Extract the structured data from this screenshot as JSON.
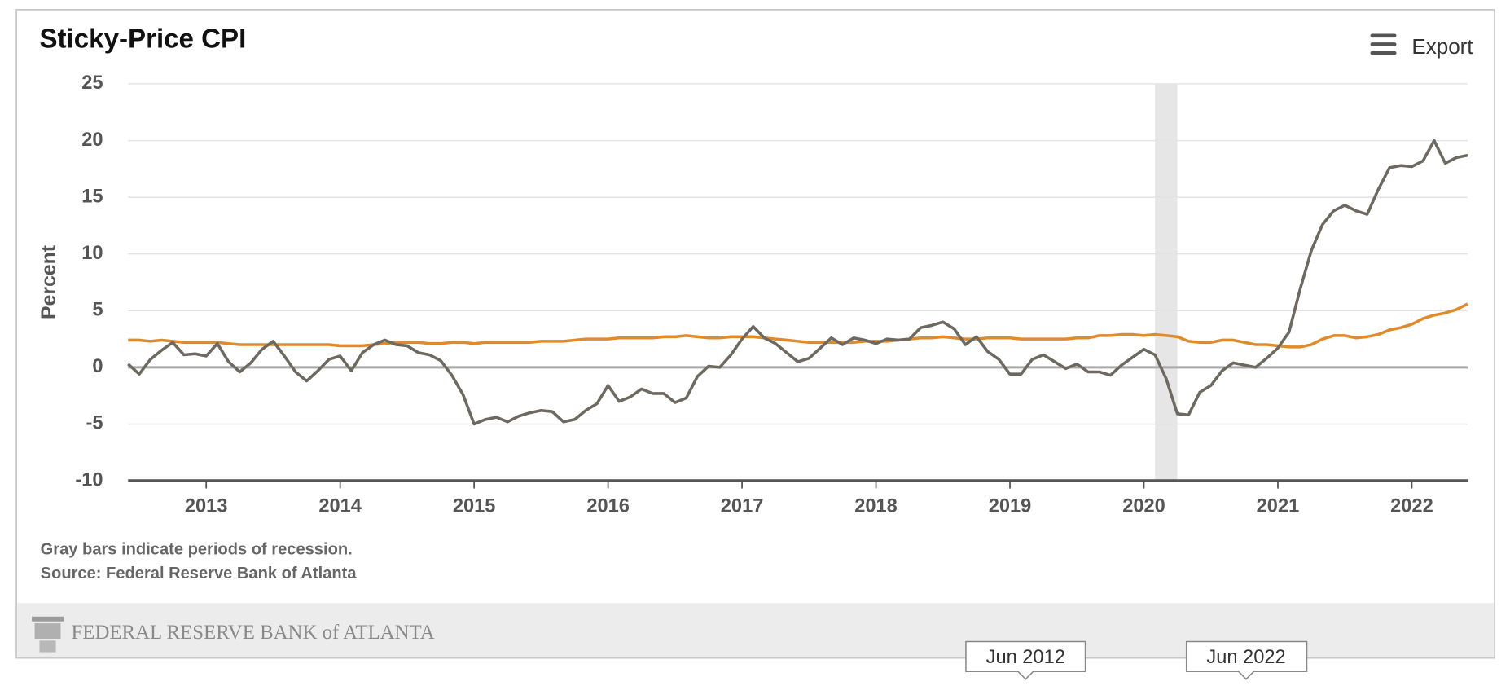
{
  "chart_data": {
    "type": "line",
    "title": "Sticky-Price CPI",
    "y_label": "Percent",
    "export_label": "Export",
    "notes": [
      "Gray bars indicate periods of recession.",
      "Source: Federal Reserve Bank of Atlanta"
    ],
    "brand": "FEDERAL RESERVE BANK of ATLANTA",
    "navigator": {
      "start": "Jun 2012",
      "end": "Jun 2022"
    },
    "xlim": [
      2012.4167,
      2022.4167
    ],
    "xticks": [
      2013,
      2014,
      2015,
      2016,
      2017,
      2018,
      2019,
      2020,
      2021,
      2022
    ],
    "ylim": [
      -10,
      25
    ],
    "yticks": [
      -10,
      -5,
      0,
      5,
      10,
      15,
      20,
      25
    ],
    "grid": true,
    "recessions": [
      [
        2020.0833,
        2020.25
      ]
    ],
    "series": [
      {
        "color": "#6e6960",
        "values": [
          0.3,
          -0.6,
          0.7,
          1.5,
          2.2,
          1.1,
          1.2,
          1.0,
          2.1,
          0.5,
          -0.4,
          0.4,
          1.6,
          2.3,
          1.0,
          -0.4,
          -1.2,
          -0.3,
          0.7,
          1.0,
          -0.3,
          1.3,
          2.0,
          2.4,
          2.0,
          1.9,
          1.3,
          1.1,
          0.6,
          -0.7,
          -2.4,
          -5.0,
          -4.6,
          -4.4,
          -4.8,
          -4.3,
          -4.0,
          -3.8,
          -3.9,
          -4.8,
          -4.6,
          -3.8,
          -3.2,
          -1.6,
          -3.0,
          -2.6,
          -1.9,
          -2.3,
          -2.3,
          -3.1,
          -2.7,
          -0.8,
          0.1,
          0.0,
          1.1,
          2.5,
          3.6,
          2.6,
          2.1,
          1.3,
          0.5,
          0.8,
          1.7,
          2.6,
          2.0,
          2.6,
          2.4,
          2.1,
          2.5,
          2.4,
          2.5,
          3.5,
          3.7,
          4.0,
          3.4,
          2.0,
          2.7,
          1.4,
          0.7,
          -0.6,
          -0.6,
          0.7,
          1.1,
          0.5,
          -0.1,
          0.3,
          -0.4,
          -0.4,
          -0.7,
          0.2,
          0.9,
          1.6,
          1.1,
          -1.0,
          -4.1,
          -4.2,
          -2.2,
          -1.6,
          -0.3,
          0.4,
          0.2,
          0.0,
          0.8,
          1.7,
          3.1,
          6.9,
          10.3,
          12.6,
          13.8,
          14.3,
          13.8,
          13.5,
          15.7,
          17.6,
          17.8,
          17.7,
          18.2,
          20.0,
          18.0,
          18.5,
          18.7
        ]
      },
      {
        "color": "#e08a2e",
        "values": [
          2.4,
          2.4,
          2.3,
          2.4,
          2.3,
          2.2,
          2.2,
          2.2,
          2.2,
          2.1,
          2.0,
          2.0,
          2.0,
          2.0,
          2.0,
          2.0,
          2.0,
          2.0,
          2.0,
          1.9,
          1.9,
          1.9,
          2.0,
          2.1,
          2.2,
          2.2,
          2.2,
          2.1,
          2.1,
          2.2,
          2.2,
          2.1,
          2.2,
          2.2,
          2.2,
          2.2,
          2.2,
          2.3,
          2.3,
          2.3,
          2.4,
          2.5,
          2.5,
          2.5,
          2.6,
          2.6,
          2.6,
          2.6,
          2.7,
          2.7,
          2.8,
          2.7,
          2.6,
          2.6,
          2.7,
          2.7,
          2.7,
          2.6,
          2.5,
          2.4,
          2.3,
          2.2,
          2.2,
          2.2,
          2.2,
          2.2,
          2.3,
          2.3,
          2.3,
          2.4,
          2.5,
          2.6,
          2.6,
          2.7,
          2.6,
          2.5,
          2.5,
          2.6,
          2.6,
          2.6,
          2.5,
          2.5,
          2.5,
          2.5,
          2.5,
          2.6,
          2.6,
          2.8,
          2.8,
          2.9,
          2.9,
          2.8,
          2.9,
          2.8,
          2.7,
          2.3,
          2.2,
          2.2,
          2.4,
          2.4,
          2.2,
          2.0,
          2.0,
          1.9,
          1.8,
          1.8,
          2.0,
          2.5,
          2.8,
          2.8,
          2.6,
          2.7,
          2.9,
          3.3,
          3.5,
          3.8,
          4.3,
          4.6,
          4.8,
          5.1,
          5.6
        ]
      }
    ]
  }
}
